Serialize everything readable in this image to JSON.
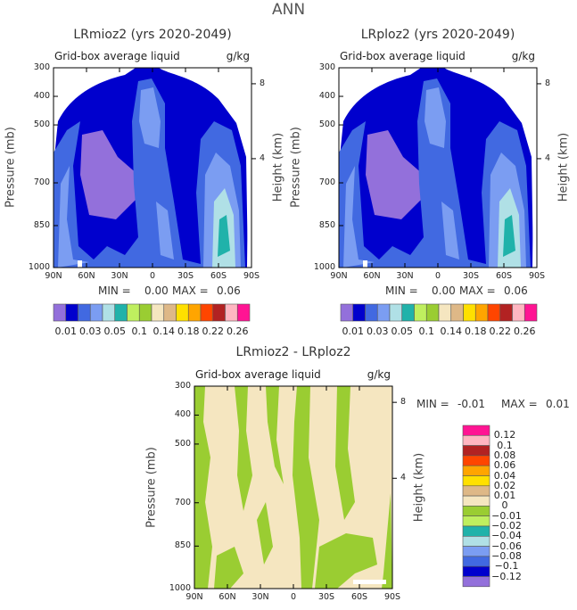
{
  "title": "ANN",
  "colors": {
    "purple": "#9370DB",
    "navy": "#0000CD",
    "royal": "#4169E1",
    "corn": "#7B9DF2",
    "powder": "#B0E0E6",
    "teal": "#20B2AA",
    "lime": "#BFEF5F",
    "olive": "#9ACD32",
    "wheat": "#F5E6C0",
    "tan": "#DEB887",
    "gold": "#FFE000",
    "orange": "#FFA500",
    "red": "#FF4500",
    "brick": "#B22222",
    "pink": "#FFB6C1",
    "magenta": "#FF1493"
  },
  "axes": {
    "x_ticks": [
      "90N",
      "60N",
      "30N",
      "0",
      "30S",
      "60S",
      "90S"
    ],
    "p_ticks": [
      "300",
      "400",
      "500",
      "700",
      "850",
      "1000"
    ],
    "h_ticks": [
      "8",
      "4"
    ],
    "ylabel": "Pressure (mb)",
    "y2label": "Height (km)"
  },
  "chart_data": [
    {
      "type": "heatmap",
      "title": "LRmioz2 (yrs 2020-2049)",
      "subtitle": "Grid-box average liquid",
      "units": "g/kg",
      "min_label": "MIN =",
      "min": "0.00",
      "max_label": "MAX =",
      "max": "0.06",
      "colorbar_labels": [
        "0.01",
        "0.03",
        "0.05",
        "0.1",
        "0.14",
        "0.18",
        "0.22",
        "0.26"
      ]
    },
    {
      "type": "heatmap",
      "title": "LRploz2 (yrs 2020-2049)",
      "subtitle": "Grid-box average liquid",
      "units": "g/kg",
      "min_label": "MIN =",
      "min": "0.00",
      "max_label": "MAX =",
      "max": "0.06",
      "colorbar_labels": [
        "0.01",
        "0.03",
        "0.05",
        "0.1",
        "0.14",
        "0.18",
        "0.22",
        "0.26"
      ]
    },
    {
      "type": "heatmap",
      "title": "LRmioz2 - LRploz2",
      "subtitle": "Grid-box average liquid",
      "units": "g/kg",
      "min_label": "MIN =",
      "min": "-0.01",
      "max_label": "MAX =",
      "max": "0.01",
      "colorbar_labels": [
        "0.12",
        "0.1",
        "0.08",
        "0.06",
        "0.04",
        "0.02",
        "0.01",
        "0",
        "−0.01",
        "−0.02",
        "−0.04",
        "−0.06",
        "−0.08",
        "−0.1",
        "−0.12"
      ]
    }
  ],
  "colorbar_colors": [
    "#9370DB",
    "#0000CD",
    "#4169E1",
    "#7B9DF2",
    "#B0E0E6",
    "#20B2AA",
    "#BFEF5F",
    "#9ACD32",
    "#F5E6C0",
    "#DEB887",
    "#FFE000",
    "#FFA500",
    "#FF4500",
    "#B22222",
    "#FFB6C1",
    "#FF1493"
  ]
}
